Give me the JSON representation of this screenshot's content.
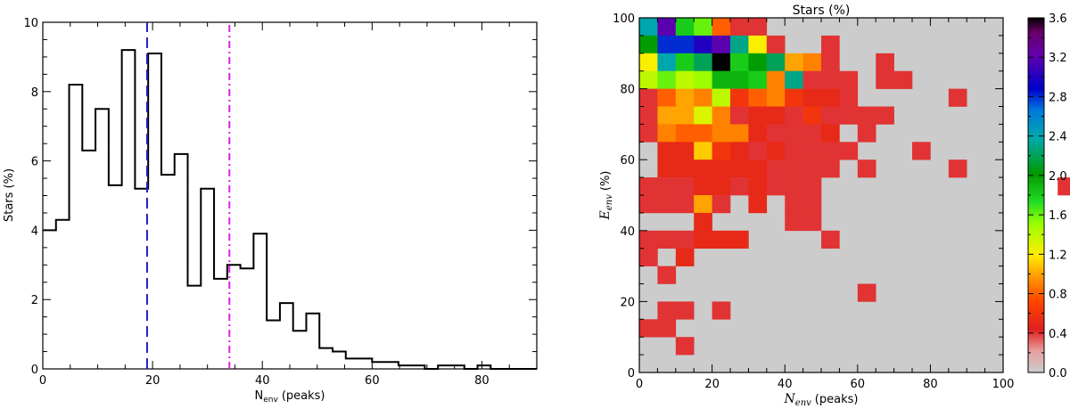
{
  "chart_data": [
    {
      "type": "step-histogram",
      "title": "",
      "xlabel": "N",
      "xlabel_sub": "env",
      "xlabel_unit": "(peaks)",
      "ylabel": "Stars (%)",
      "xlim": [
        0,
        90
      ],
      "ylim": [
        0,
        10
      ],
      "xticks": [
        0,
        20,
        40,
        60,
        80
      ],
      "yticks": [
        0,
        2,
        4,
        6,
        8,
        10
      ],
      "x": [
        0,
        2.4,
        4.8,
        7.2,
        9.6,
        12,
        14.4,
        16.8,
        19.2,
        21.6,
        24,
        26.4,
        28.8,
        31.2,
        33.6,
        36,
        38.4,
        40.8,
        43.2,
        45.6,
        48,
        50.4,
        52.8,
        55.2,
        57.6,
        60,
        62.4,
        64.8,
        67.2,
        69.6,
        72,
        74.4,
        76.8,
        79.2,
        81.6,
        84,
        86.4,
        88.8,
        90
      ],
      "values": [
        4.0,
        4.3,
        8.2,
        6.3,
        7.5,
        5.3,
        9.2,
        5.2,
        9.1,
        5.6,
        6.2,
        2.4,
        5.2,
        2.6,
        3.0,
        2.9,
        3.9,
        1.4,
        1.9,
        1.1,
        1.6,
        0.6,
        0.5,
        0.3,
        0.3,
        0.2,
        0.2,
        0.1,
        0.1,
        0.0,
        0.1,
        0.1,
        0.0,
        0.1,
        0.0,
        0.0,
        0.0,
        0.0
      ],
      "vlines": [
        {
          "x": 19,
          "color": "#2020c0",
          "style": "dashed"
        },
        {
          "x": 34,
          "color": "#e020e0",
          "style": "dashdot"
        }
      ]
    },
    {
      "type": "heatmap",
      "title": "Stars (%)",
      "xlabel": "N",
      "xlabel_sub": "env",
      "xlabel_unit": "(peaks)",
      "ylabel": "E",
      "ylabel_sub": "env",
      "ylabel_unit": "(%)",
      "xlim": [
        0,
        100
      ],
      "ylim": [
        0,
        100
      ],
      "xticks": [
        0,
        20,
        40,
        60,
        80,
        100
      ],
      "yticks": [
        0,
        20,
        40,
        60,
        80,
        100
      ],
      "cell_size": 5,
      "background_color": "#cccccc",
      "colorbar": {
        "min": 0.0,
        "max": 3.6,
        "ticks": [
          "0.0",
          "0.4",
          "0.8",
          "1.2",
          "1.6",
          "2.0",
          "2.4",
          "2.8",
          "3.2",
          "3.6"
        ]
      },
      "cells": [
        [
          0,
          19,
          2.4
        ],
        [
          1,
          19,
          3.2
        ],
        [
          2,
          19,
          1.8
        ],
        [
          3,
          19,
          1.6
        ],
        [
          4,
          19,
          0.8
        ],
        [
          5,
          19,
          0.4
        ],
        [
          6,
          19,
          0.4
        ],
        [
          0,
          18,
          2.0
        ],
        [
          1,
          18,
          2.8
        ],
        [
          2,
          18,
          2.8
        ],
        [
          3,
          18,
          3.0
        ],
        [
          4,
          18,
          3.2
        ],
        [
          5,
          18,
          2.3
        ],
        [
          6,
          18,
          1.2
        ],
        [
          7,
          18,
          0.4
        ],
        [
          10,
          18,
          0.4
        ],
        [
          0,
          17,
          1.2
        ],
        [
          1,
          17,
          2.4
        ],
        [
          2,
          17,
          1.8
        ],
        [
          3,
          17,
          2.2
        ],
        [
          4,
          17,
          3.6
        ],
        [
          5,
          17,
          1.8
        ],
        [
          6,
          17,
          2.0
        ],
        [
          7,
          17,
          2.2
        ],
        [
          8,
          17,
          1.0
        ],
        [
          9,
          17,
          0.9
        ],
        [
          10,
          17,
          0.4
        ],
        [
          13,
          17,
          0.4
        ],
        [
          0,
          16,
          1.4
        ],
        [
          1,
          16,
          1.6
        ],
        [
          2,
          16,
          1.4
        ],
        [
          3,
          16,
          1.5
        ],
        [
          4,
          16,
          1.9
        ],
        [
          5,
          16,
          1.9
        ],
        [
          6,
          16,
          1.8
        ],
        [
          7,
          16,
          0.9
        ],
        [
          8,
          16,
          2.3
        ],
        [
          9,
          16,
          0.4
        ],
        [
          10,
          16,
          0.4
        ],
        [
          11,
          16,
          0.4
        ],
        [
          13,
          16,
          0.4
        ],
        [
          14,
          16,
          0.4
        ],
        [
          0,
          15,
          0.4
        ],
        [
          1,
          15,
          0.8
        ],
        [
          2,
          15,
          1.0
        ],
        [
          3,
          15,
          0.9
        ],
        [
          4,
          15,
          1.4
        ],
        [
          5,
          15,
          0.6
        ],
        [
          6,
          15,
          0.8
        ],
        [
          7,
          15,
          0.9
        ],
        [
          8,
          15,
          0.6
        ],
        [
          9,
          15,
          0.5
        ],
        [
          10,
          15,
          0.5
        ],
        [
          11,
          15,
          0.4
        ],
        [
          17,
          15,
          0.4
        ],
        [
          0,
          14,
          0.4
        ],
        [
          1,
          14,
          1.0
        ],
        [
          2,
          14,
          1.0
        ],
        [
          3,
          14,
          1.3
        ],
        [
          4,
          14,
          0.9
        ],
        [
          5,
          14,
          0.4
        ],
        [
          6,
          14,
          0.5
        ],
        [
          7,
          14,
          0.5
        ],
        [
          8,
          14,
          0.4
        ],
        [
          9,
          14,
          0.6
        ],
        [
          10,
          14,
          0.4
        ],
        [
          11,
          14,
          0.4
        ],
        [
          12,
          14,
          0.4
        ],
        [
          13,
          14,
          0.4
        ],
        [
          0,
          13,
          0.4
        ],
        [
          1,
          13,
          0.9
        ],
        [
          2,
          13,
          0.8
        ],
        [
          3,
          13,
          0.8
        ],
        [
          4,
          13,
          0.9
        ],
        [
          5,
          13,
          0.9
        ],
        [
          6,
          13,
          0.5
        ],
        [
          7,
          13,
          0.4
        ],
        [
          8,
          13,
          0.4
        ],
        [
          9,
          13,
          0.4
        ],
        [
          10,
          13,
          0.5
        ],
        [
          12,
          13,
          0.4
        ],
        [
          1,
          12,
          0.5
        ],
        [
          2,
          12,
          0.5
        ],
        [
          3,
          12,
          1.1
        ],
        [
          4,
          12,
          0.6
        ],
        [
          5,
          12,
          0.5
        ],
        [
          6,
          12,
          0.4
        ],
        [
          7,
          12,
          0.5
        ],
        [
          8,
          12,
          0.4
        ],
        [
          9,
          12,
          0.4
        ],
        [
          10,
          12,
          0.4
        ],
        [
          11,
          12,
          0.4
        ],
        [
          15,
          12,
          0.4
        ],
        [
          1,
          11,
          0.5
        ],
        [
          2,
          11,
          0.5
        ],
        [
          3,
          11,
          0.5
        ],
        [
          4,
          11,
          0.5
        ],
        [
          5,
          11,
          0.5
        ],
        [
          6,
          11,
          0.5
        ],
        [
          7,
          11,
          0.4
        ],
        [
          8,
          11,
          0.4
        ],
        [
          9,
          11,
          0.4
        ],
        [
          10,
          11,
          0.4
        ],
        [
          12,
          11,
          0.4
        ],
        [
          17,
          11,
          0.4
        ],
        [
          0,
          10,
          0.4
        ],
        [
          1,
          10,
          0.4
        ],
        [
          2,
          10,
          0.4
        ],
        [
          3,
          10,
          0.5
        ],
        [
          4,
          10,
          0.5
        ],
        [
          5,
          10,
          0.4
        ],
        [
          6,
          10,
          0.5
        ],
        [
          7,
          10,
          0.4
        ],
        [
          8,
          10,
          0.4
        ],
        [
          9,
          10,
          0.4
        ],
        [
          23,
          10,
          0.4
        ],
        [
          0,
          9,
          0.4
        ],
        [
          1,
          9,
          0.4
        ],
        [
          2,
          9,
          0.4
        ],
        [
          3,
          9,
          1.0
        ],
        [
          4,
          9,
          0.4
        ],
        [
          6,
          9,
          0.5
        ],
        [
          8,
          9,
          0.4
        ],
        [
          9,
          9,
          0.4
        ],
        [
          3,
          8,
          0.5
        ],
        [
          8,
          8,
          0.4
        ],
        [
          9,
          8,
          0.4
        ],
        [
          0,
          7,
          0.4
        ],
        [
          1,
          7,
          0.4
        ],
        [
          2,
          7,
          0.4
        ],
        [
          3,
          7,
          0.5
        ],
        [
          4,
          7,
          0.5
        ],
        [
          5,
          7,
          0.5
        ],
        [
          10,
          7,
          0.4
        ],
        [
          0,
          6,
          0.4
        ],
        [
          2,
          6,
          0.5
        ],
        [
          1,
          5,
          0.4
        ],
        [
          12,
          4,
          0.4
        ],
        [
          1,
          3,
          0.4
        ],
        [
          2,
          3,
          0.4
        ],
        [
          4,
          3,
          0.4
        ],
        [
          0,
          2,
          0.4
        ],
        [
          1,
          2,
          0.4
        ],
        [
          2,
          1,
          0.4
        ]
      ]
    }
  ]
}
